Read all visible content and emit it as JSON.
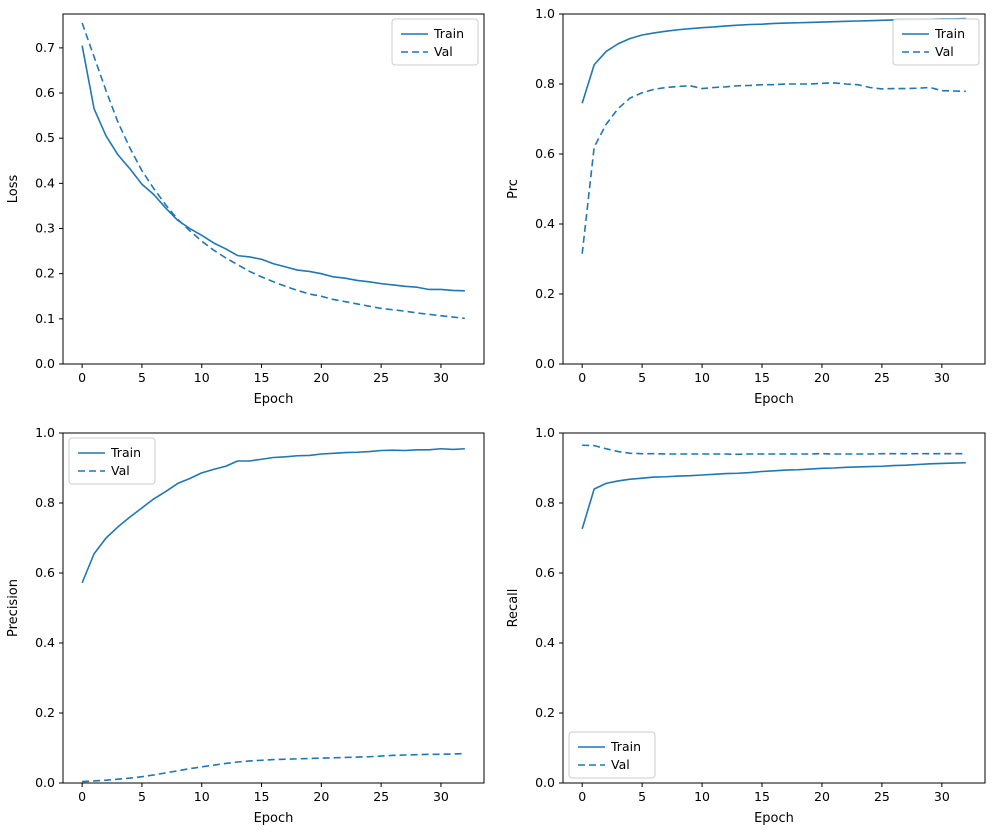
{
  "figure": {
    "background": "#ffffff",
    "accent_color": "#1f77b4"
  },
  "chart_data": [
    {
      "type": "line",
      "title": "",
      "xlabel": "Epoch",
      "ylabel": "Loss",
      "xlim": [
        -1.6,
        33.6
      ],
      "ylim": [
        0.0,
        0.775
      ],
      "xticks": [
        0,
        5,
        10,
        15,
        20,
        25,
        30
      ],
      "yticks": [
        0.0,
        0.1,
        0.2,
        0.3,
        0.4,
        0.5,
        0.6,
        0.7
      ],
      "grid": false,
      "legend": {
        "position": "upper right",
        "entries": [
          "Train",
          "Val"
        ]
      },
      "x": [
        0,
        1,
        2,
        3,
        4,
        5,
        6,
        7,
        8,
        9,
        10,
        11,
        12,
        13,
        14,
        15,
        16,
        17,
        18,
        19,
        20,
        21,
        22,
        23,
        24,
        25,
        26,
        27,
        28,
        29,
        30,
        31,
        32
      ],
      "series": [
        {
          "name": "Train",
          "style": "solid",
          "color": "#1f77b4",
          "values": [
            0.705,
            0.565,
            0.505,
            0.463,
            0.432,
            0.398,
            0.375,
            0.345,
            0.318,
            0.3,
            0.285,
            0.268,
            0.255,
            0.24,
            0.237,
            0.232,
            0.222,
            0.215,
            0.208,
            0.205,
            0.2,
            0.193,
            0.19,
            0.185,
            0.182,
            0.178,
            0.175,
            0.172,
            0.17,
            0.165,
            0.165,
            0.163,
            0.162
          ]
        },
        {
          "name": "Val",
          "style": "dashed",
          "color": "#1f77b4",
          "values": [
            0.755,
            0.68,
            0.605,
            0.535,
            0.478,
            0.428,
            0.388,
            0.352,
            0.32,
            0.295,
            0.272,
            0.252,
            0.235,
            0.22,
            0.205,
            0.193,
            0.182,
            0.172,
            0.163,
            0.155,
            0.15,
            0.143,
            0.138,
            0.133,
            0.128,
            0.123,
            0.12,
            0.117,
            0.113,
            0.11,
            0.107,
            0.104,
            0.101
          ]
        }
      ]
    },
    {
      "type": "line",
      "title": "",
      "xlabel": "Epoch",
      "ylabel": "Prc",
      "xlim": [
        -1.6,
        33.6
      ],
      "ylim": [
        0.0,
        1.0
      ],
      "xticks": [
        0,
        5,
        10,
        15,
        20,
        25,
        30
      ],
      "yticks": [
        0.0,
        0.2,
        0.4,
        0.6,
        0.8,
        1.0
      ],
      "grid": false,
      "legend": {
        "position": "upper right",
        "entries": [
          "Train",
          "Val"
        ]
      },
      "x": [
        0,
        1,
        2,
        3,
        4,
        5,
        6,
        7,
        8,
        9,
        10,
        11,
        12,
        13,
        14,
        15,
        16,
        17,
        18,
        19,
        20,
        21,
        22,
        23,
        24,
        25,
        26,
        27,
        28,
        29,
        30,
        31,
        32
      ],
      "series": [
        {
          "name": "Train",
          "style": "solid",
          "color": "#1f77b4",
          "values": [
            0.745,
            0.855,
            0.893,
            0.915,
            0.93,
            0.94,
            0.946,
            0.951,
            0.955,
            0.958,
            0.961,
            0.963,
            0.966,
            0.968,
            0.97,
            0.971,
            0.973,
            0.974,
            0.975,
            0.976,
            0.977,
            0.978,
            0.979,
            0.98,
            0.981,
            0.982,
            0.983,
            0.984,
            0.984,
            0.985,
            0.986,
            0.986,
            0.987
          ]
        },
        {
          "name": "Val",
          "style": "dashed",
          "color": "#1f77b4",
          "values": [
            0.315,
            0.62,
            0.685,
            0.73,
            0.76,
            0.775,
            0.785,
            0.79,
            0.793,
            0.795,
            0.787,
            0.79,
            0.792,
            0.795,
            0.796,
            0.798,
            0.798,
            0.8,
            0.8,
            0.8,
            0.802,
            0.803,
            0.8,
            0.798,
            0.79,
            0.786,
            0.787,
            0.787,
            0.788,
            0.79,
            0.781,
            0.78,
            0.779
          ]
        }
      ]
    },
    {
      "type": "line",
      "title": "",
      "xlabel": "Epoch",
      "ylabel": "Precision",
      "xlim": [
        -1.6,
        33.6
      ],
      "ylim": [
        0.0,
        1.0
      ],
      "xticks": [
        0,
        5,
        10,
        15,
        20,
        25,
        30
      ],
      "yticks": [
        0.0,
        0.2,
        0.4,
        0.6,
        0.8,
        1.0
      ],
      "grid": false,
      "legend": {
        "position": "upper left",
        "entries": [
          "Train",
          "Val"
        ]
      },
      "x": [
        0,
        1,
        2,
        3,
        4,
        5,
        6,
        7,
        8,
        9,
        10,
        11,
        12,
        13,
        14,
        15,
        16,
        17,
        18,
        19,
        20,
        21,
        22,
        23,
        24,
        25,
        26,
        27,
        28,
        29,
        30,
        31,
        32
      ],
      "series": [
        {
          "name": "Train",
          "style": "solid",
          "color": "#1f77b4",
          "values": [
            0.572,
            0.655,
            0.7,
            0.732,
            0.76,
            0.786,
            0.812,
            0.833,
            0.856,
            0.87,
            0.886,
            0.896,
            0.905,
            0.92,
            0.92,
            0.925,
            0.93,
            0.932,
            0.935,
            0.936,
            0.94,
            0.942,
            0.944,
            0.945,
            0.947,
            0.95,
            0.951,
            0.95,
            0.952,
            0.952,
            0.955,
            0.953,
            0.955
          ]
        },
        {
          "name": "Val",
          "style": "dashed",
          "color": "#1f77b4",
          "values": [
            0.004,
            0.006,
            0.008,
            0.011,
            0.014,
            0.018,
            0.023,
            0.029,
            0.035,
            0.041,
            0.046,
            0.051,
            0.056,
            0.06,
            0.063,
            0.065,
            0.067,
            0.068,
            0.069,
            0.07,
            0.071,
            0.072,
            0.073,
            0.074,
            0.075,
            0.077,
            0.079,
            0.08,
            0.081,
            0.082,
            0.082,
            0.083,
            0.084
          ]
        }
      ]
    },
    {
      "type": "line",
      "title": "",
      "xlabel": "Epoch",
      "ylabel": "Recall",
      "xlim": [
        -1.6,
        33.6
      ],
      "ylim": [
        0.0,
        1.0
      ],
      "xticks": [
        0,
        5,
        10,
        15,
        20,
        25,
        30
      ],
      "yticks": [
        0.0,
        0.2,
        0.4,
        0.6,
        0.8,
        1.0
      ],
      "grid": false,
      "legend": {
        "position": "lower left",
        "entries": [
          "Train",
          "Val"
        ]
      },
      "x": [
        0,
        1,
        2,
        3,
        4,
        5,
        6,
        7,
        8,
        9,
        10,
        11,
        12,
        13,
        14,
        15,
        16,
        17,
        18,
        19,
        20,
        21,
        22,
        23,
        24,
        25,
        26,
        27,
        28,
        29,
        30,
        31,
        32
      ],
      "series": [
        {
          "name": "Train",
          "style": "solid",
          "color": "#1f77b4",
          "values": [
            0.726,
            0.84,
            0.856,
            0.863,
            0.868,
            0.871,
            0.874,
            0.875,
            0.877,
            0.878,
            0.88,
            0.882,
            0.884,
            0.885,
            0.887,
            0.89,
            0.892,
            0.894,
            0.895,
            0.897,
            0.899,
            0.9,
            0.902,
            0.903,
            0.904,
            0.905,
            0.907,
            0.908,
            0.91,
            0.912,
            0.913,
            0.914,
            0.915
          ]
        },
        {
          "name": "Val",
          "style": "dashed",
          "color": "#1f77b4",
          "values": [
            0.965,
            0.964,
            0.955,
            0.947,
            0.942,
            0.941,
            0.941,
            0.94,
            0.94,
            0.94,
            0.94,
            0.94,
            0.94,
            0.939,
            0.94,
            0.94,
            0.94,
            0.94,
            0.94,
            0.94,
            0.941,
            0.94,
            0.94,
            0.94,
            0.94,
            0.941,
            0.941,
            0.941,
            0.941,
            0.941,
            0.941,
            0.941,
            0.941
          ]
        }
      ]
    }
  ]
}
